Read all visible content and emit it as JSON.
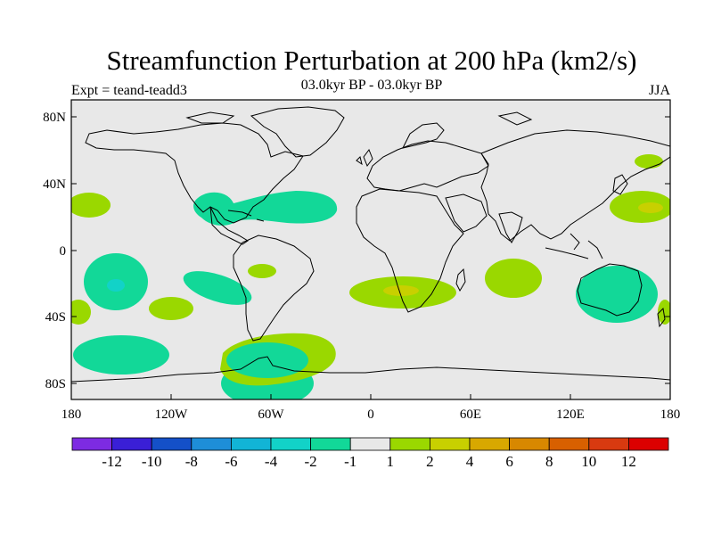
{
  "title": "Streamfunction Perturbation at 200 hPa (km2/s)",
  "subtitle_left": "Expt = teand-teadd3",
  "subtitle_center": "03.0kyr BP - 03.0kyr BP",
  "subtitle_right": "JJA",
  "map": {
    "projection": "cylindrical-equidistant",
    "ocean_fill": "#e8e8e8",
    "lat_ticks": [
      "80N",
      "40N",
      "0",
      "40S",
      "80S"
    ],
    "lon_ticks": [
      "180",
      "120W",
      "60W",
      "0",
      "60E",
      "120E",
      "180"
    ]
  },
  "colorbar": {
    "colors": [
      "#7d2be2",
      "#3a1fd6",
      "#1450c8",
      "#1e8ed8",
      "#12b4d6",
      "#12d2c8",
      "#12d898",
      "#e8e8e8",
      "#9ad800",
      "#c8d000",
      "#d8a800",
      "#d88800",
      "#d86000",
      "#d83a10",
      "#dc0000"
    ],
    "labels": [
      "-12",
      "-10",
      "-8",
      "-6",
      "-4",
      "-2",
      "-1",
      "1",
      "2",
      "4",
      "6",
      "8",
      "10",
      "12"
    ]
  }
}
